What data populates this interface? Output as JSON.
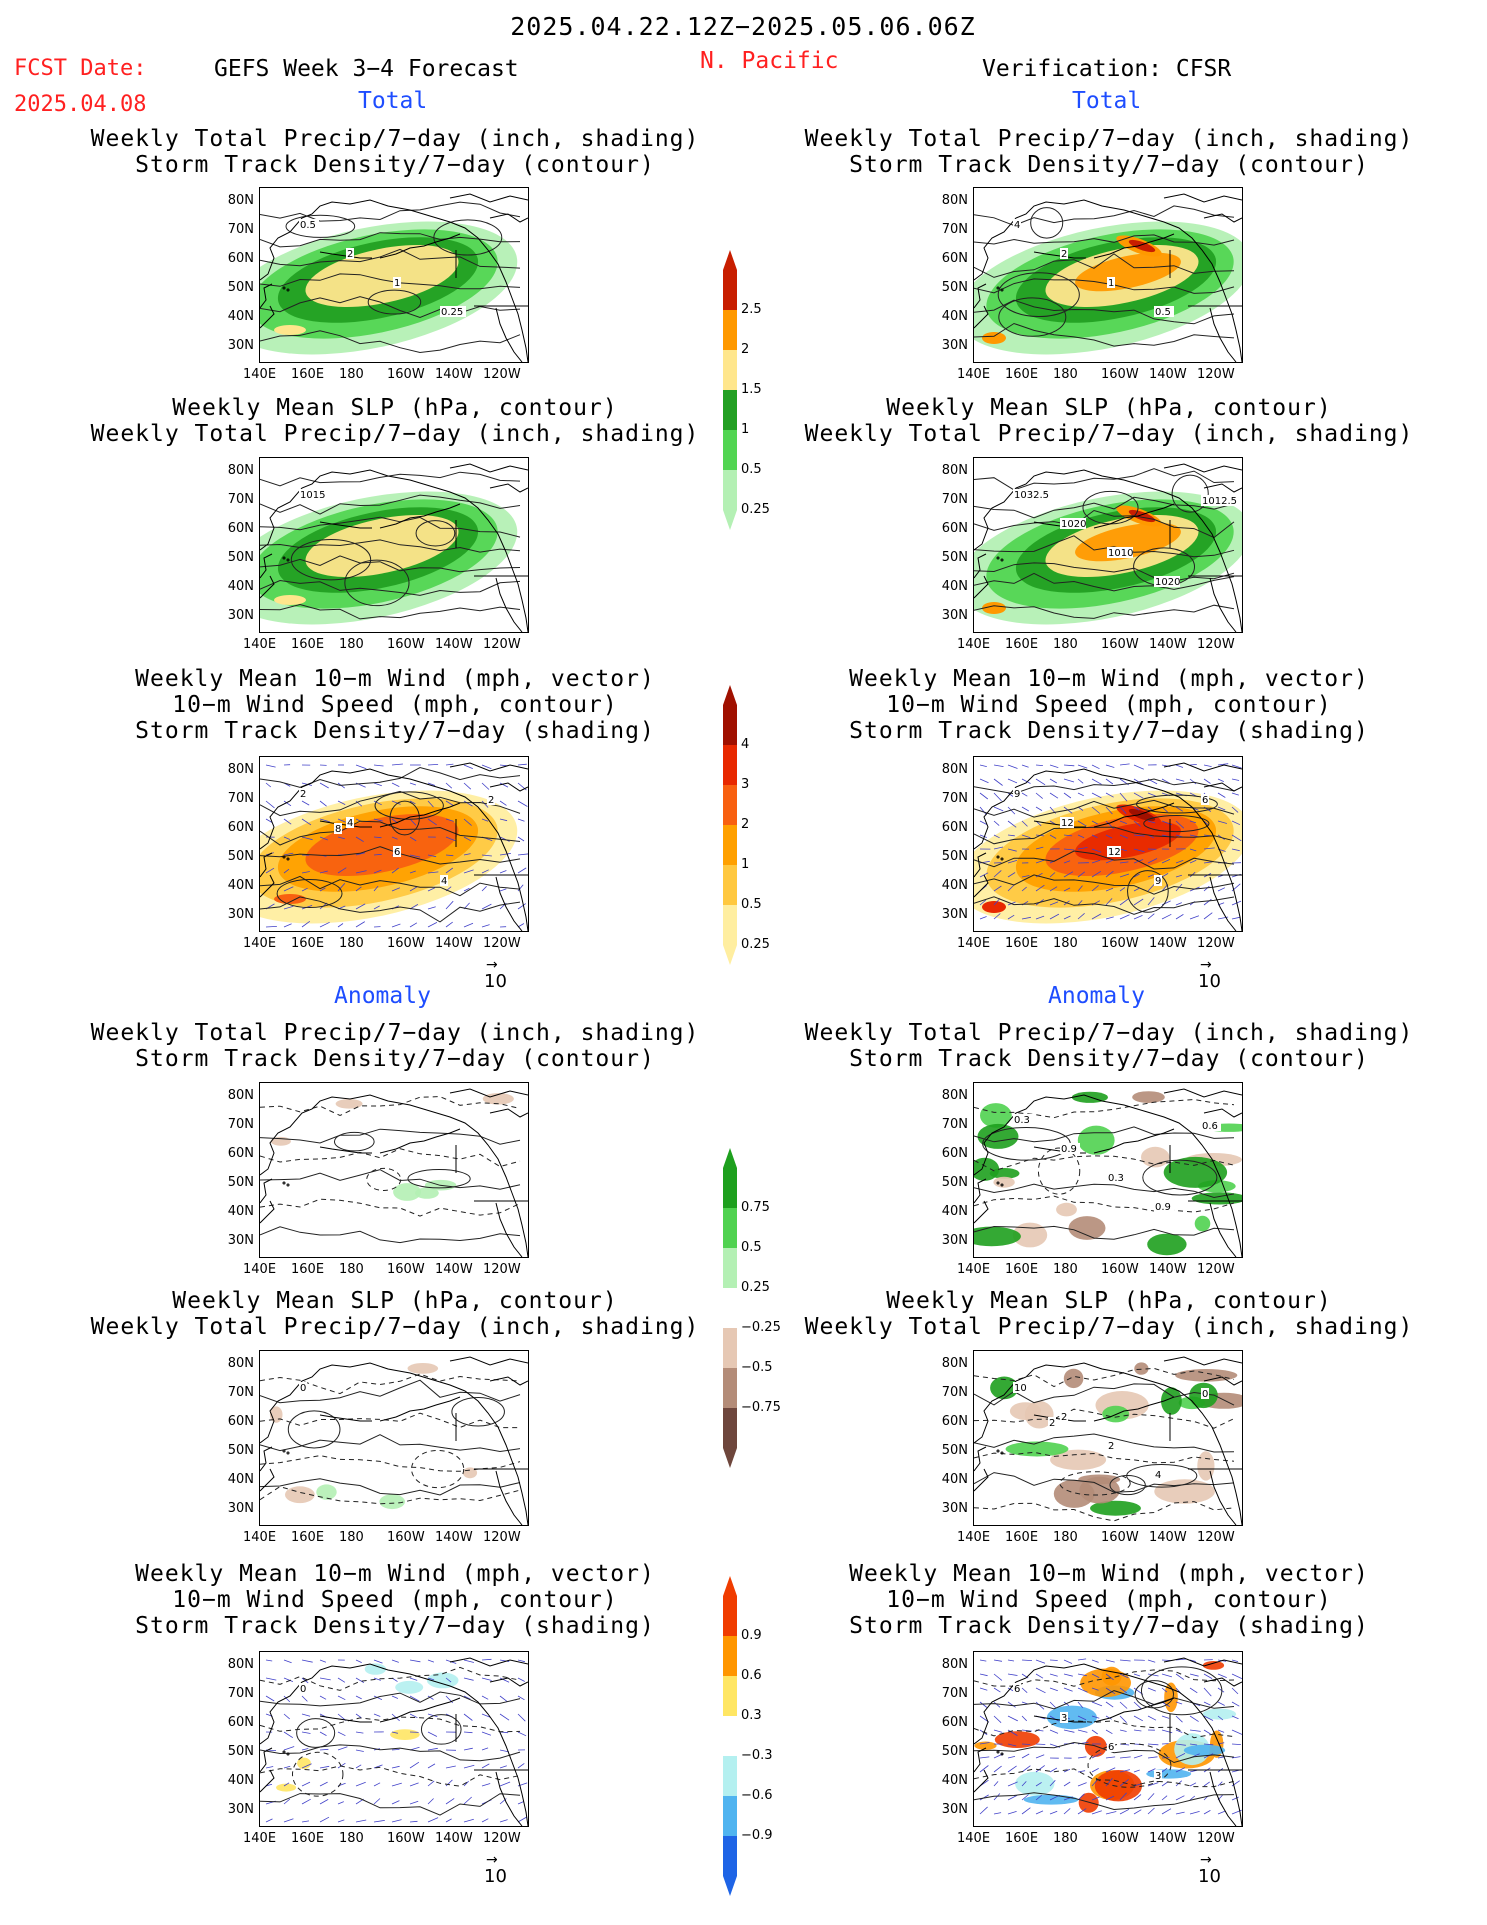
{
  "header": {
    "date_range": "2025.04.22.12Z−2025.05.06.06Z",
    "fcst_label": "FCST Date:",
    "fcst_date": "2025.04.08",
    "forecast_title": "GEFS Week 3−4 Forecast",
    "region": "N. Pacific",
    "verification": "Verification: CFSR"
  },
  "sections": {
    "total": "Total",
    "anomaly": "Anomaly"
  },
  "panel_titles": {
    "precip_storm": [
      "Weekly Total Precip/7−day (inch, shading)",
      "Storm Track Density/7−day (contour)"
    ],
    "slp_precip": [
      "Weekly Mean SLP (hPa, contour)",
      "Weekly Total Precip/7−day (inch, shading)"
    ],
    "wind_storm": [
      "Weekly Mean 10−m Wind (mph, vector)",
      "10−m Wind Speed (mph, contour)",
      "Storm Track Density/7−day (shading)"
    ]
  },
  "axes": {
    "lat_labels": [
      "80N",
      "70N",
      "60N",
      "50N",
      "40N",
      "30N"
    ],
    "lon_labels": [
      "140E",
      "160E",
      "180",
      "160W",
      "140W",
      "120W"
    ]
  },
  "vector_ref": "10",
  "contour_labels": {
    "fc_total_precip": [
      "0.5",
      "2",
      "1",
      "0.25"
    ],
    "obs_total_precip": [
      "4",
      "2",
      "1",
      "0.5"
    ],
    "fc_total_slp": [
      "1015"
    ],
    "obs_total_slp": [
      "1032.5",
      "1020",
      "1010",
      "1020",
      "1012.5"
    ],
    "fc_total_wind": [
      "2",
      "4",
      "6",
      "4",
      "2",
      "8"
    ],
    "obs_total_wind": [
      "9",
      "12",
      "12",
      "9",
      "6"
    ],
    "obs_anom_precip": [
      "0.3",
      "0.9",
      "0.3",
      "0.9",
      "0.6"
    ],
    "fc_anom_slp": [
      "0"
    ],
    "obs_anom_slp": [
      "10",
      "2",
      "2",
      "4",
      "0",
      "2"
    ],
    "fc_anom_wind": [
      "0"
    ],
    "obs_anom_wind": [
      "6",
      "3",
      "6",
      "3"
    ]
  },
  "colorbars": {
    "precip": {
      "labels": [
        "2.5",
        "2",
        "1.5",
        "1",
        "0.5",
        "0.25"
      ],
      "colors": [
        "#c81e00",
        "#ff9900",
        "#ffe68c",
        "#23a023",
        "#52d552",
        "#b4f0b4"
      ]
    },
    "storm": {
      "labels": [
        "4",
        "3",
        "2",
        "1",
        "0.5",
        "0.25"
      ],
      "colors": [
        "#a01000",
        "#e82800",
        "#f86010",
        "#ffa000",
        "#ffc840",
        "#ffeea0"
      ]
    },
    "precip_anom": {
      "labels": [
        "0.75",
        "0.5",
        "0.25",
        "−0.25",
        "−0.5",
        "−0.75"
      ],
      "colors": [
        "#1ea01e",
        "#50d250",
        "#b4f0b4",
        "#ffffff",
        "#e6c8b4",
        "#b48c78",
        "#6e463c"
      ]
    },
    "storm_anom": {
      "labels": [
        "0.9",
        "0.6",
        "0.3",
        "−0.3",
        "−0.6",
        "−0.9"
      ],
      "colors": [
        "#f03c00",
        "#ff9600",
        "#ffe664",
        "#ffffff",
        "#b4f0f0",
        "#50b4f0",
        "#1e64e6"
      ]
    }
  }
}
